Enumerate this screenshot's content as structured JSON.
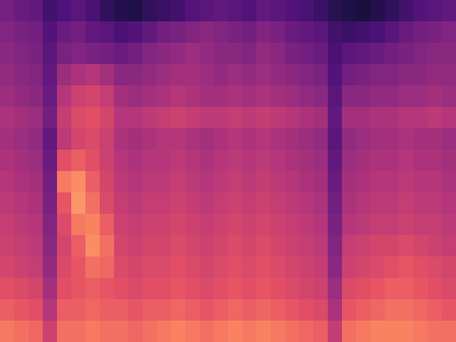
{
  "chart_data": {
    "type": "heatmap",
    "tick_labels": false,
    "zlim": [
      0,
      100
    ],
    "cells": [
      [
        35,
        32,
        30,
        22,
        25,
        28,
        24,
        18,
        15,
        14,
        18,
        20,
        22,
        26,
        28,
        30,
        28,
        26,
        30,
        28,
        26,
        24,
        20,
        16,
        14,
        12,
        15,
        18,
        22,
        26,
        28,
        30
      ],
      [
        38,
        36,
        34,
        26,
        32,
        34,
        30,
        28,
        24,
        26,
        30,
        34,
        36,
        38,
        40,
        38,
        36,
        34,
        38,
        36,
        32,
        30,
        28,
        22,
        20,
        22,
        24,
        28,
        32,
        34,
        36,
        38
      ],
      [
        40,
        38,
        36,
        28,
        36,
        38,
        36,
        34,
        32,
        34,
        38,
        40,
        42,
        44,
        42,
        40,
        40,
        38,
        42,
        40,
        36,
        34,
        32,
        24,
        28,
        30,
        32,
        34,
        36,
        38,
        40,
        40
      ],
      [
        42,
        40,
        38,
        30,
        44,
        48,
        50,
        46,
        40,
        40,
        42,
        44,
        46,
        46,
        44,
        42,
        44,
        42,
        44,
        42,
        40,
        38,
        36,
        26,
        34,
        36,
        38,
        38,
        40,
        40,
        42,
        42
      ],
      [
        44,
        42,
        40,
        32,
        50,
        56,
        58,
        54,
        46,
        44,
        46,
        48,
        50,
        48,
        46,
        46,
        48,
        46,
        48,
        46,
        44,
        42,
        40,
        28,
        40,
        40,
        42,
        42,
        44,
        44,
        46,
        44
      ],
      [
        48,
        46,
        44,
        34,
        54,
        60,
        62,
        58,
        50,
        50,
        52,
        54,
        56,
        54,
        52,
        52,
        54,
        52,
        54,
        52,
        50,
        48,
        46,
        30,
        46,
        46,
        48,
        48,
        50,
        50,
        52,
        50
      ],
      [
        46,
        44,
        42,
        30,
        52,
        58,
        60,
        56,
        48,
        46,
        48,
        50,
        50,
        48,
        46,
        48,
        50,
        48,
        50,
        48,
        46,
        44,
        42,
        28,
        42,
        44,
        46,
        46,
        48,
        46,
        46,
        44
      ],
      [
        48,
        46,
        44,
        32,
        62,
        66,
        62,
        56,
        50,
        48,
        50,
        50,
        52,
        50,
        48,
        50,
        52,
        50,
        52,
        50,
        48,
        46,
        44,
        30,
        44,
        46,
        48,
        48,
        50,
        48,
        48,
        46
      ],
      [
        50,
        48,
        46,
        34,
        72,
        76,
        66,
        58,
        52,
        50,
        52,
        52,
        54,
        52,
        50,
        52,
        54,
        52,
        54,
        52,
        50,
        48,
        46,
        32,
        46,
        48,
        50,
        50,
        52,
        50,
        50,
        48
      ],
      [
        52,
        50,
        48,
        36,
        64,
        78,
        70,
        60,
        54,
        52,
        54,
        54,
        56,
        54,
        52,
        54,
        56,
        54,
        56,
        54,
        52,
        50,
        48,
        34,
        48,
        50,
        52,
        52,
        54,
        52,
        52,
        50
      ],
      [
        54,
        52,
        50,
        38,
        60,
        72,
        74,
        66,
        56,
        54,
        56,
        56,
        58,
        56,
        54,
        56,
        58,
        56,
        58,
        56,
        54,
        52,
        50,
        36,
        50,
        52,
        54,
        54,
        56,
        54,
        54,
        52
      ],
      [
        56,
        54,
        52,
        40,
        58,
        66,
        76,
        70,
        58,
        56,
        58,
        58,
        60,
        58,
        56,
        58,
        60,
        58,
        60,
        58,
        56,
        54,
        52,
        38,
        54,
        56,
        58,
        58,
        60,
        58,
        56,
        54
      ],
      [
        58,
        56,
        54,
        42,
        60,
        64,
        70,
        68,
        60,
        58,
        60,
        60,
        62,
        60,
        58,
        60,
        62,
        60,
        62,
        60,
        58,
        56,
        54,
        40,
        56,
        58,
        60,
        62,
        64,
        62,
        60,
        58
      ],
      [
        62,
        60,
        58,
        46,
        62,
        64,
        66,
        64,
        62,
        60,
        62,
        62,
        64,
        62,
        60,
        62,
        64,
        62,
        64,
        62,
        60,
        58,
        56,
        44,
        60,
        62,
        64,
        66,
        66,
        64,
        62,
        60
      ],
      [
        66,
        64,
        62,
        50,
        66,
        66,
        68,
        66,
        66,
        64,
        66,
        66,
        68,
        66,
        64,
        66,
        68,
        66,
        68,
        66,
        64,
        62,
        60,
        48,
        64,
        66,
        68,
        70,
        70,
        68,
        66,
        64
      ],
      [
        72,
        70,
        68,
        56,
        70,
        70,
        72,
        70,
        70,
        68,
        70,
        72,
        74,
        72,
        70,
        72,
        74,
        72,
        74,
        72,
        70,
        68,
        66,
        54,
        70,
        72,
        74,
        74,
        74,
        72,
        70,
        70
      ]
    ]
  }
}
